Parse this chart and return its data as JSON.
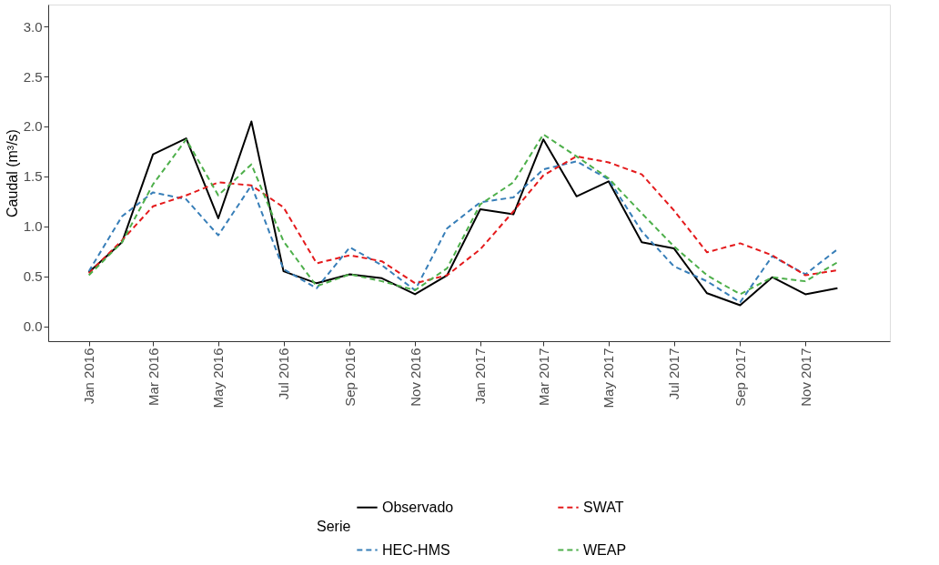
{
  "chart_data": {
    "type": "line",
    "ylabel": "Caudal (m³/s)",
    "legend_title": "Serie",
    "legend": "bottom",
    "grid": false,
    "x": [
      "2016-01",
      "2016-02",
      "2016-03",
      "2016-04",
      "2016-05",
      "2016-06",
      "2016-07",
      "2016-08",
      "2016-09",
      "2016-10",
      "2016-11",
      "2016-12",
      "2017-01",
      "2017-02",
      "2017-03",
      "2017-04",
      "2017-05",
      "2017-06",
      "2017-07",
      "2017-08",
      "2017-09",
      "2017-10",
      "2017-11",
      "2017-12"
    ],
    "xlim": [
      "2015-11-24",
      "2018-01-19"
    ],
    "xticks": [
      {
        "value": "2016-01",
        "label": "Jan 2016"
      },
      {
        "value": "2016-03",
        "label": "Mar 2016"
      },
      {
        "value": "2016-05",
        "label": "May 2016"
      },
      {
        "value": "2016-07",
        "label": "Jul 2016"
      },
      {
        "value": "2016-09",
        "label": "Sep 2016"
      },
      {
        "value": "2016-11",
        "label": "Nov 2016"
      },
      {
        "value": "2017-01",
        "label": "Jan 2017"
      },
      {
        "value": "2017-03",
        "label": "Mar 2017"
      },
      {
        "value": "2017-05",
        "label": "May 2017"
      },
      {
        "value": "2017-07",
        "label": "Jul 2017"
      },
      {
        "value": "2017-09",
        "label": "Sep 2017"
      },
      {
        "value": "2017-11",
        "label": "Nov 2017"
      }
    ],
    "ylim": [
      -0.15,
      3.22
    ],
    "yticks": [
      {
        "value": 0,
        "label": "0.0"
      },
      {
        "value": 0.5,
        "label": "0.5"
      },
      {
        "value": 1,
        "label": "1.0"
      },
      {
        "value": 1.5,
        "label": "1.5"
      },
      {
        "value": 2,
        "label": "2.0"
      },
      {
        "value": 2.5,
        "label": "2.5"
      },
      {
        "value": 3,
        "label": "3.0"
      }
    ],
    "series": [
      {
        "name": "Observado",
        "color": "#000000",
        "line_style": "solid",
        "values": [
          0.54,
          0.84,
          1.72,
          1.88,
          1.08,
          2.05,
          0.55,
          0.43,
          0.52,
          0.48,
          0.32,
          0.51,
          1.17,
          1.12,
          1.87,
          1.3,
          1.45,
          0.84,
          0.78,
          0.33,
          0.21,
          0.49,
          0.32,
          0.38
        ]
      },
      {
        "name": "HEC-HMS",
        "color": "#377eb8",
        "line_style": "dashed",
        "values": [
          0.55,
          1.1,
          1.34,
          1.27,
          0.91,
          1.41,
          0.57,
          0.38,
          0.79,
          0.61,
          0.36,
          0.98,
          1.24,
          1.29,
          1.57,
          1.65,
          1.47,
          0.95,
          0.6,
          0.45,
          0.24,
          0.7,
          0.52,
          0.77
        ]
      },
      {
        "name": "SWAT",
        "color": "#e41a1c",
        "line_style": "dashed",
        "values": [
          0.53,
          0.86,
          1.2,
          1.31,
          1.44,
          1.41,
          1.19,
          0.63,
          0.71,
          0.65,
          0.43,
          0.51,
          0.77,
          1.15,
          1.51,
          1.7,
          1.64,
          1.52,
          1.16,
          0.74,
          0.83,
          0.71,
          0.51,
          0.56
        ]
      },
      {
        "name": "WEAP",
        "color": "#4daf4a",
        "line_style": "dashed",
        "values": [
          0.51,
          0.84,
          1.42,
          1.87,
          1.31,
          1.62,
          0.85,
          0.4,
          0.52,
          0.45,
          0.36,
          0.58,
          1.22,
          1.44,
          1.92,
          1.7,
          1.48,
          1.13,
          0.8,
          0.51,
          0.32,
          0.49,
          0.45,
          0.64
        ]
      }
    ]
  }
}
